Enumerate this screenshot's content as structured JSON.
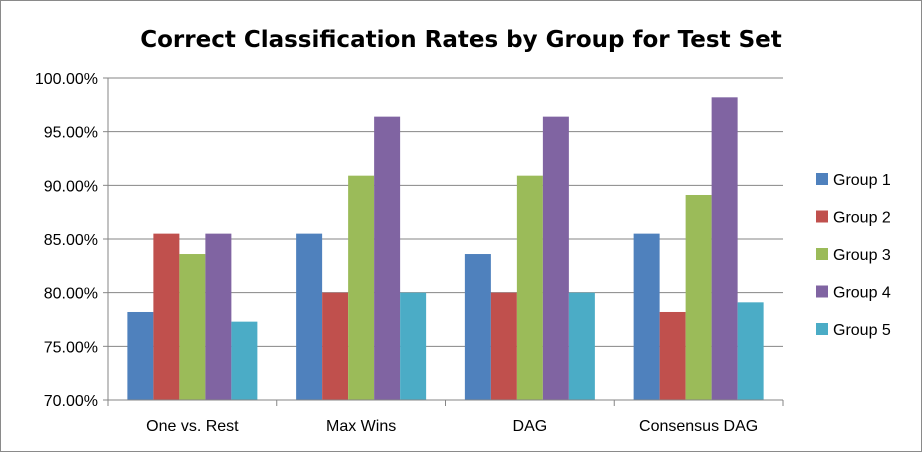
{
  "chart_data": {
    "type": "bar",
    "title": "Correct Classification Rates by Group for Test Set",
    "xlabel": "",
    "ylabel": "",
    "categories": [
      "One vs. Rest",
      "Max Wins",
      "DAG",
      "Consensus DAG"
    ],
    "series": [
      {
        "name": "Group 1",
        "color": "#4F81BD",
        "values": [
          0.782,
          0.855,
          0.836,
          0.855
        ]
      },
      {
        "name": "Group 2",
        "color": "#C0504D",
        "values": [
          0.855,
          0.8,
          0.8,
          0.782
        ]
      },
      {
        "name": "Group 3",
        "color": "#9BBB59",
        "values": [
          0.836,
          0.909,
          0.909,
          0.891
        ]
      },
      {
        "name": "Group 4",
        "color": "#8064A2",
        "values": [
          0.855,
          0.964,
          0.964,
          0.982
        ]
      },
      {
        "name": "Group 5",
        "color": "#4BACC6",
        "values": [
          0.773,
          0.8,
          0.8,
          0.791
        ]
      }
    ],
    "ylim": [
      0.7,
      1.0
    ],
    "yticks": [
      "70.00%",
      "75.00%",
      "80.00%",
      "85.00%",
      "90.00%",
      "95.00%",
      "100.00%"
    ],
    "grid": true,
    "legend_position": "right"
  }
}
